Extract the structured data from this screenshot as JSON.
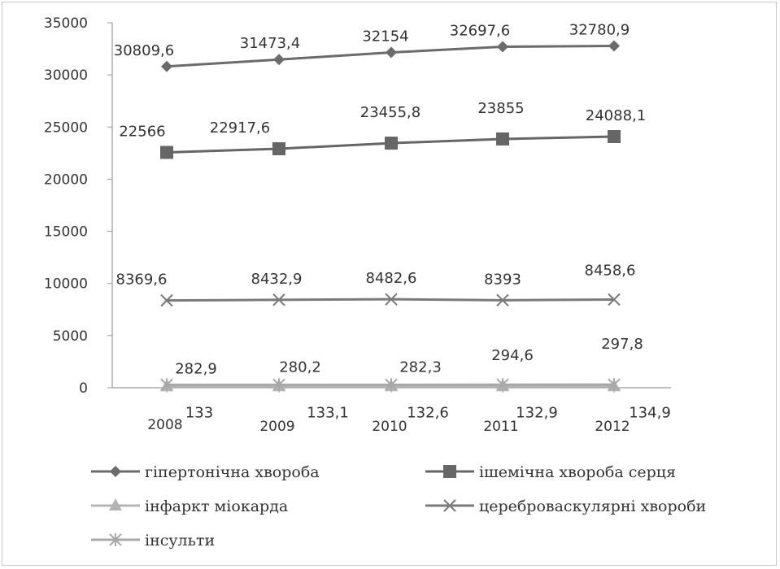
{
  "chart_data": {
    "type": "line",
    "title": "",
    "xlabel": "",
    "ylabel": "",
    "categories": [
      "2008",
      "2009",
      "2010",
      "2011",
      "2012"
    ],
    "ylim": [
      0,
      35000
    ],
    "yticks": [
      "0",
      "5000",
      "10000",
      "15000",
      "20000",
      "25000",
      "30000",
      "35000"
    ],
    "grid": false,
    "legend_placement": "bottom",
    "series": [
      {
        "name": "гіпертонічна хвороба",
        "values": [
          30809.6,
          31473.4,
          32154,
          32697.6,
          32780.9
        ],
        "labels": [
          "30809,6",
          "31473,4",
          "32154",
          "32697,6",
          "32780,9"
        ],
        "marker": "diamond",
        "color": "#6b6b6b"
      },
      {
        "name": "ішемічна хвороба серця",
        "values": [
          22566,
          22917.6,
          23455.8,
          23855,
          24088.1
        ],
        "labels": [
          "22566",
          "22917,6",
          "23455,8",
          "23855",
          "24088,1"
        ],
        "marker": "square",
        "color": "#666666"
      },
      {
        "name": "інфаркт міокарда",
        "values": [
          133,
          133.1,
          132.6,
          132.9,
          134.9
        ],
        "labels": [
          "133",
          "133,1",
          "132,6",
          "132,9",
          "134,9"
        ],
        "marker": "triangle",
        "color": "#b4b4b4"
      },
      {
        "name": "цереброваскулярні хвороби",
        "values": [
          8369.6,
          8432.9,
          8482.6,
          8393,
          8458.6
        ],
        "labels": [
          "8369,6",
          "8432,9",
          "8482,6",
          "8393",
          "8458,6"
        ],
        "marker": "x",
        "color": "#7a7a7a"
      },
      {
        "name": "інсульти",
        "values": [
          282.9,
          280.2,
          282.3,
          294.6,
          297.8
        ],
        "labels": [
          "282,9",
          "280,2",
          "282,3",
          "294,6",
          "297,8"
        ],
        "marker": "star",
        "color": "#a8a8a8"
      }
    ]
  }
}
